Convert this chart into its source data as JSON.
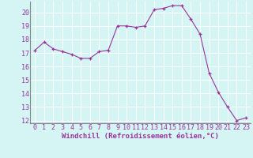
{
  "x": [
    0,
    1,
    2,
    3,
    4,
    5,
    6,
    7,
    8,
    9,
    10,
    11,
    12,
    13,
    14,
    15,
    16,
    17,
    18,
    19,
    20,
    21,
    22,
    23
  ],
  "y": [
    17.2,
    17.8,
    17.3,
    17.1,
    16.9,
    16.6,
    16.6,
    17.1,
    17.2,
    19.0,
    19.0,
    18.9,
    19.0,
    20.2,
    20.3,
    20.5,
    20.5,
    19.5,
    18.4,
    15.5,
    14.1,
    13.0,
    12.0,
    12.2
  ],
  "line_color": "#993399",
  "marker": "+",
  "marker_size": 3,
  "bg_color": "#d5f5f5",
  "grid_color": "#b8e8e8",
  "xlabel": "Windchill (Refroidissement éolien,°C)",
  "xlabel_fontsize": 6.5,
  "tick_fontsize": 6.0,
  "ylim": [
    11.8,
    20.8
  ],
  "xlim": [
    -0.5,
    23.5
  ],
  "yticks": [
    12,
    13,
    14,
    15,
    16,
    17,
    18,
    19,
    20
  ],
  "xticks": [
    0,
    1,
    2,
    3,
    4,
    5,
    6,
    7,
    8,
    9,
    10,
    11,
    12,
    13,
    14,
    15,
    16,
    17,
    18,
    19,
    20,
    21,
    22,
    23
  ],
  "axis_color": "#993399",
  "spine_color": "#888888"
}
